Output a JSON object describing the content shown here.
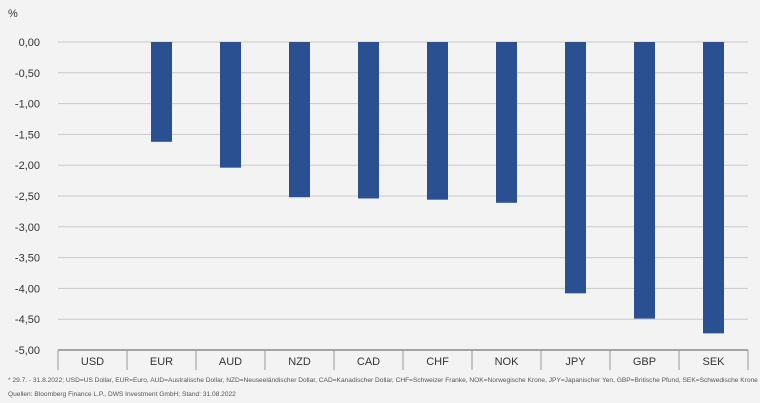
{
  "chart_data": {
    "type": "bar",
    "unit_label": "%",
    "categories": [
      "USD",
      "EUR",
      "AUD",
      "NZD",
      "CAD",
      "CHF",
      "NOK",
      "JPY",
      "GBP",
      "SEK"
    ],
    "values": [
      0.0,
      -1.62,
      -2.04,
      -2.52,
      -2.54,
      -2.56,
      -2.61,
      -4.08,
      -4.49,
      -4.73
    ],
    "yticks": [
      "0,00",
      "-0,50",
      "-1,00",
      "-1,50",
      "-2,00",
      "-2,50",
      "-3,00",
      "-3,50",
      "-4,00",
      "-4,50",
      "-5,00"
    ],
    "ylim": [
      -5,
      0
    ],
    "bar_color": "#2a5091",
    "grid": true
  },
  "footnotes": {
    "line1": "* 29.7. - 31.8.2022; USD=US Dollar, EUR=Euro, AUD=Australische Dollar, NZD=Neuseeländischer Dollar, CAD=Kanadischer Dollar, CHF=Schweizer Franke, NOK=Norwegische Krone, JPY=Japanischer Yen, GBP=Britische Pfund, SEK=Schwedische Krone",
    "line2": "Quellen: Bloomberg Finance L.P., DWS Investment GmbH; Stand: 31.08.2022"
  }
}
